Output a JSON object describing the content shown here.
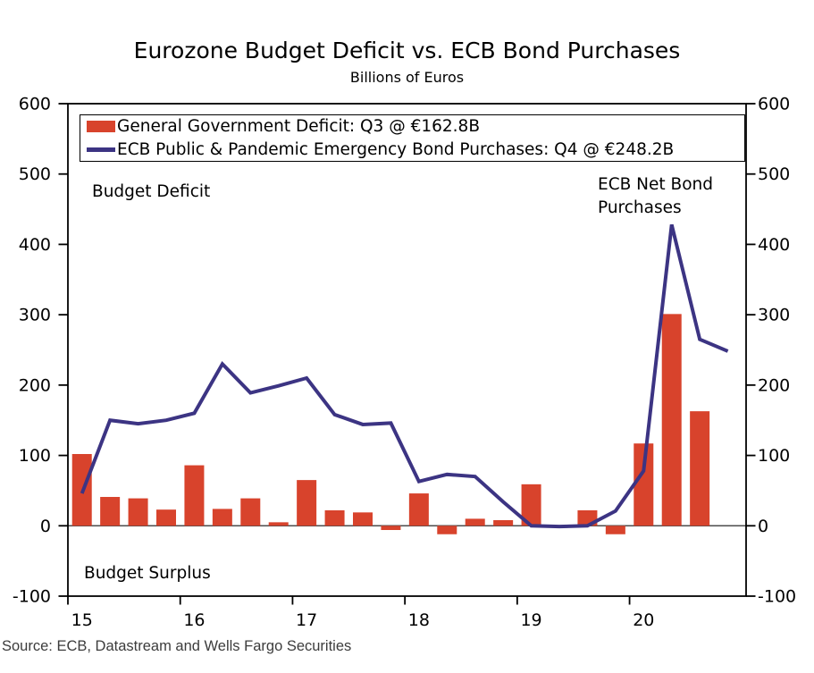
{
  "title": "Eurozone Budget Deficit vs. ECB Bond Purchases",
  "subtitle": "Billions of Euros",
  "source": "Source: ECB, Datastream and Wells Fargo Securities",
  "annotations": {
    "budget_deficit": "Budget Deficit",
    "ecb_net_bond_purchases": "ECB Net Bond\nPurchases",
    "budget_surplus": "Budget Surplus"
  },
  "legend": [
    {
      "label": "General Government Deficit: Q3 @ €162.8B",
      "swatch": "bar",
      "color": "#d8432c"
    },
    {
      "label": "ECB Public & Pandemic Emergency Bond Purchases: Q4 @ €248.2B",
      "swatch": "line",
      "color": "#3c3483"
    }
  ],
  "chart_data": {
    "type": "combo-bar-line",
    "y_axis_unit": "Billions of Euros",
    "ylim": [
      -100,
      600
    ],
    "yticks": [
      600,
      500,
      400,
      300,
      200,
      100,
      0,
      -100
    ],
    "x_axis_year_labels": [
      "15",
      "16",
      "17",
      "18",
      "19",
      "20"
    ],
    "x_quarters": [
      "2015Q1",
      "2015Q2",
      "2015Q3",
      "2015Q4",
      "2016Q1",
      "2016Q2",
      "2016Q3",
      "2016Q4",
      "2017Q1",
      "2017Q2",
      "2017Q3",
      "2017Q4",
      "2018Q1",
      "2018Q2",
      "2018Q3",
      "2018Q4",
      "2019Q1",
      "2019Q2",
      "2019Q3",
      "2019Q4",
      "2020Q1",
      "2020Q2",
      "2020Q3",
      "2020Q4"
    ],
    "series": [
      {
        "name": "General Government Deficit",
        "type": "bar",
        "color": "#d8432c",
        "latest_label": "Q3 @ €162.8B",
        "values": [
          102,
          41,
          39,
          23,
          86,
          24,
          39,
          5,
          65,
          22,
          19,
          -6,
          46,
          -12,
          10,
          8,
          59,
          0,
          22,
          -12,
          117,
          301,
          162.8,
          null
        ]
      },
      {
        "name": "ECB Public & Pandemic Emergency Bond Purchases",
        "type": "line",
        "color": "#3c3483",
        "latest_label": "Q4 @ €248.2B",
        "values": [
          46,
          150,
          145,
          150,
          160,
          230,
          189,
          199,
          210,
          158,
          144,
          146,
          63,
          73,
          70,
          34,
          0,
          -1,
          0,
          21,
          78,
          428,
          265,
          248.2
        ]
      }
    ],
    "grid": false,
    "legend_position": "top-left-inside",
    "axis_color": "#000000",
    "zero_line_color": "#4d4d4d"
  }
}
